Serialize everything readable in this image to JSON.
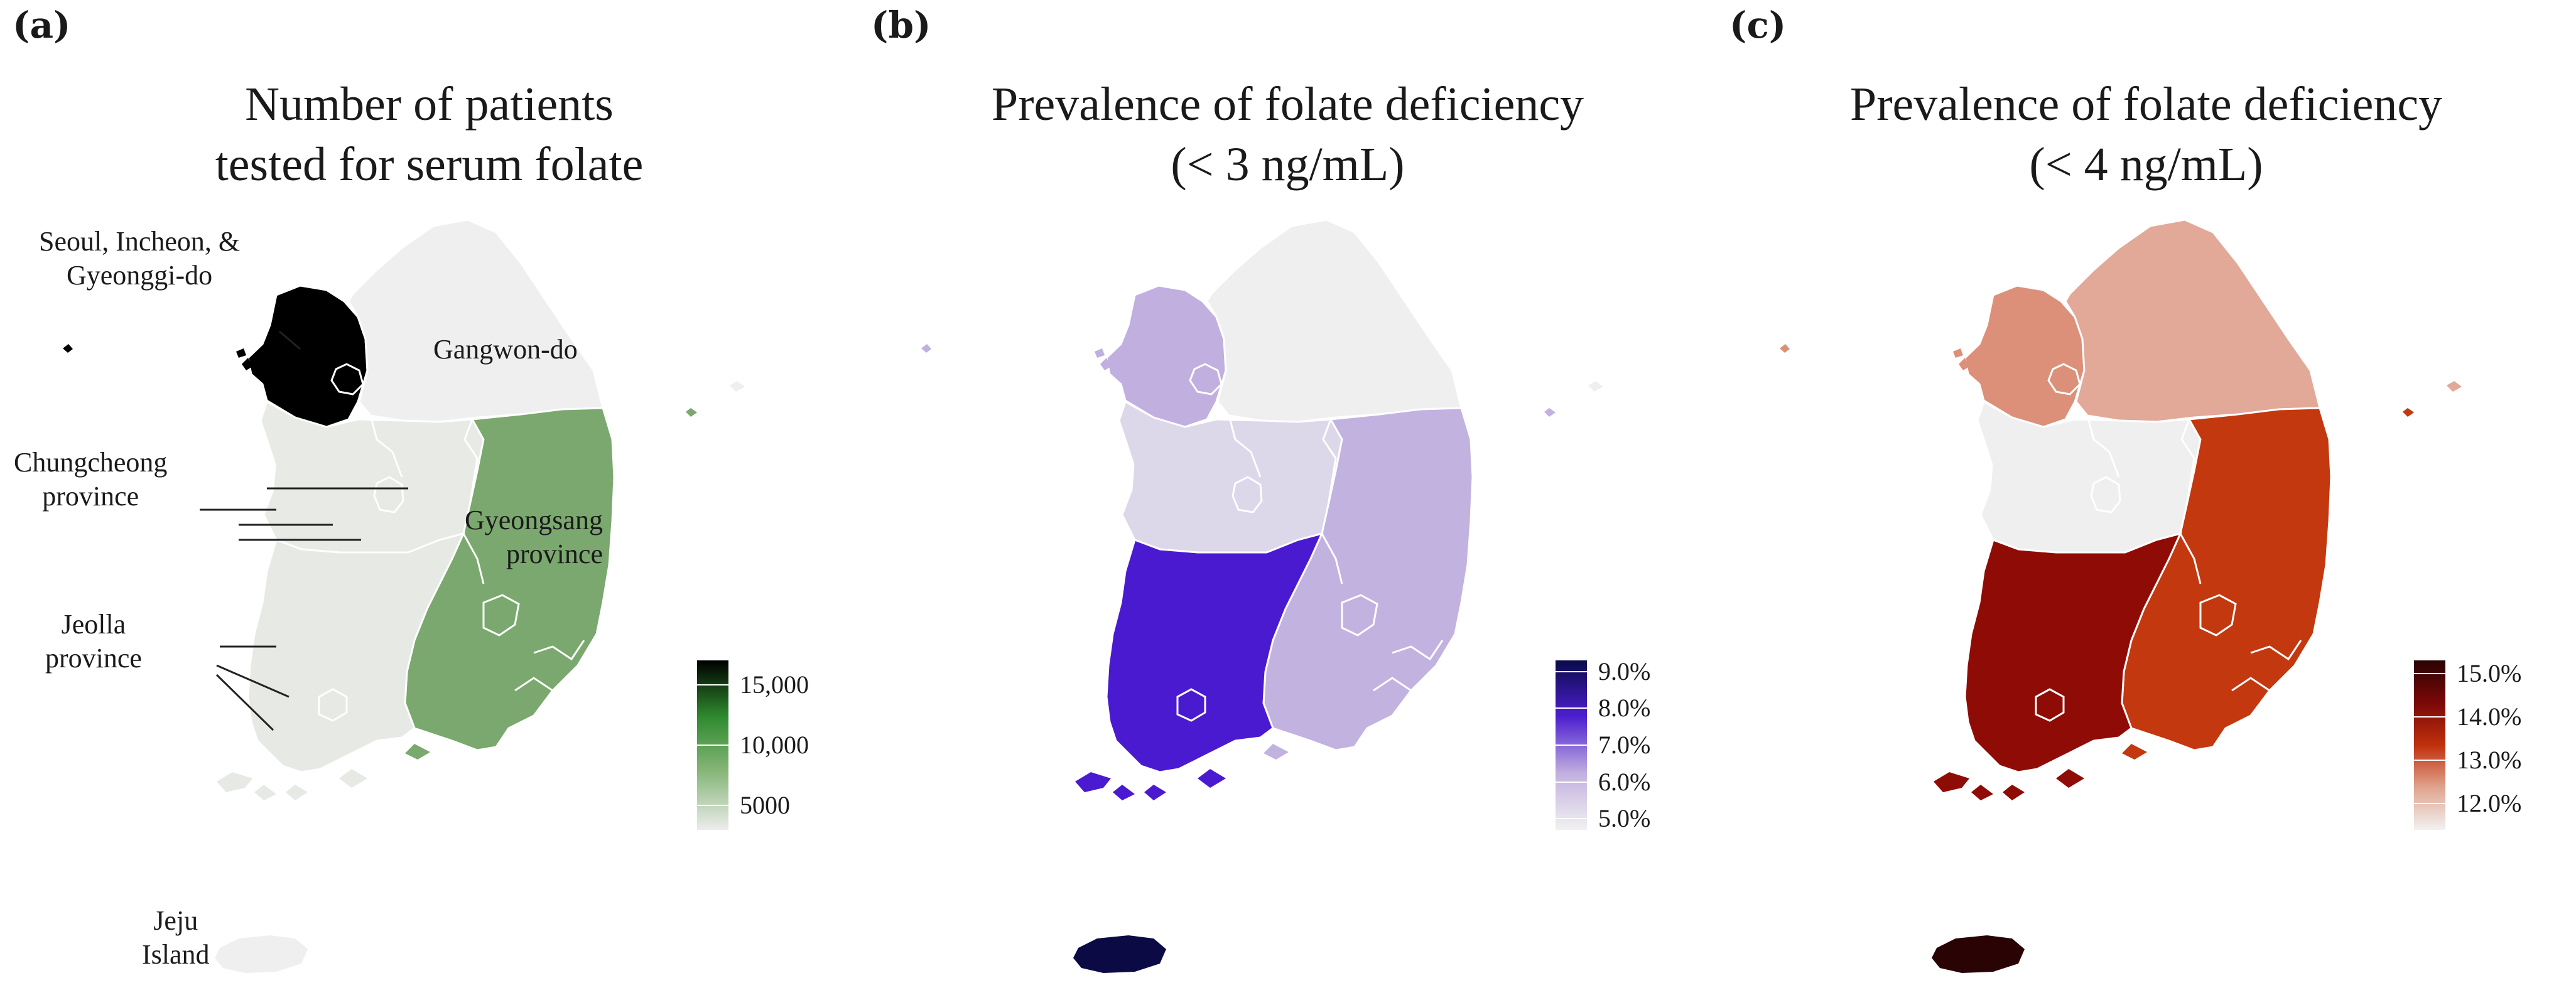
{
  "panels": [
    {
      "label": "(a)",
      "title_line1": "Number of patients",
      "title_line2": "tested for serum folate",
      "legend": {
        "ticks": [
          "15,000",
          "10,000",
          "5000"
        ],
        "range": [
          3000,
          17000
        ],
        "tick_values": [
          15000,
          10000,
          5000
        ],
        "colors": [
          "#ececec",
          "#8ab87c",
          "#2f8a2f",
          "#000000"
        ]
      },
      "region_values": {
        "capital": "15,000+",
        "gangwon": "low",
        "chungcheong": "low",
        "jeolla": "low",
        "gyeongsang": "~8,500",
        "jeju": "low"
      },
      "region_colors": {
        "capital": "#000000",
        "gangwon": "#efefef",
        "chungcheong": "#e8eae6",
        "jeolla": "#e6e9e4",
        "gyeongsang": "#7aa86e",
        "jeju": "#efefef"
      },
      "annotations": {
        "capital": "Seoul, Incheon, &\nGyeonggi-do",
        "gangwon": "Gangwon-do",
        "chungcheong": "Chungcheong\nprovince",
        "gyeongsang": "Gyeongsang\nprovince",
        "jeolla": "Jeolla\nprovince",
        "jeju": "Jeju\nIsland"
      }
    },
    {
      "label": "(b)",
      "title_line1": "Prevalence of folate deficiency",
      "title_line2": "(< 3 ng/mL)",
      "legend": {
        "ticks": [
          "9.0%",
          "8.0%",
          "7.0%",
          "6.0%",
          "5.0%"
        ],
        "range": [
          4.7,
          9.3
        ],
        "tick_values": [
          9.0,
          8.0,
          7.0,
          6.0,
          5.0
        ],
        "colors": [
          "#f1f1f1",
          "#c2b0e0",
          "#4d1fd0",
          "#0a0a4a"
        ]
      },
      "region_values": {
        "capital": "6.0%",
        "gangwon": "5.0%",
        "chungcheong": "5.2%",
        "jeolla": "7.5%",
        "gyeongsang": "6.0%",
        "jeju": "9.2%"
      },
      "region_colors": {
        "capital": "#c0afdf",
        "gangwon": "#efefef",
        "chungcheong": "#dcd7e9",
        "jeolla": "#4a1ad0",
        "gyeongsang": "#c2b2e0",
        "jeju": "#0b0a45"
      }
    },
    {
      "label": "(c)",
      "title_line1": "Prevalence of folate deficiency",
      "title_line2": "(< 4 ng/mL)",
      "legend": {
        "ticks": [
          "15.0%",
          "14.0%",
          "13.0%",
          "12.0%"
        ],
        "range": [
          11.4,
          15.3
        ],
        "tick_values": [
          15.0,
          14.0,
          13.0,
          12.0
        ],
        "colors": [
          "#f1f1f1",
          "#e0a48e",
          "#c0300c",
          "#7a0808",
          "#2a0303"
        ]
      },
      "region_values": {
        "capital": "12.3%",
        "gangwon": "12.0%",
        "chungcheong": "11.5%",
        "jeolla": "14.0%",
        "gyeongsang": "13.0%",
        "jeju": "15.2%"
      },
      "region_colors": {
        "capital": "#dc907a",
        "gangwon": "#e2a898",
        "chungcheong": "#efefef",
        "jeolla": "#8f0c06",
        "gyeongsang": "#c3380e",
        "jeju": "#2a0404"
      }
    }
  ]
}
